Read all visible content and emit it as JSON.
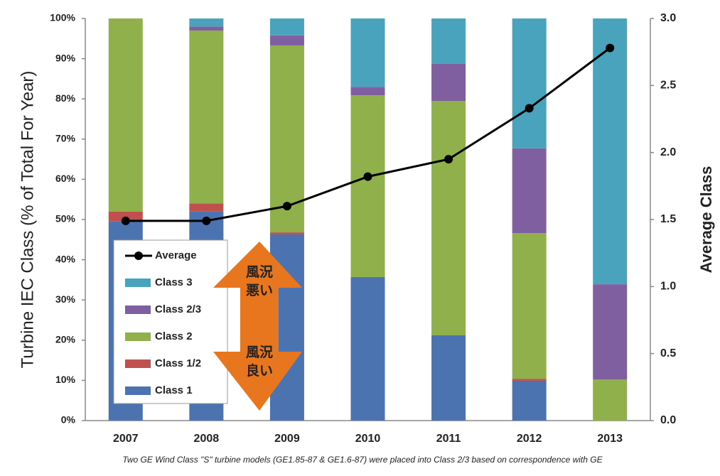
{
  "chart_data": {
    "type": "stacked-bar-line",
    "y_label": "Turbine IEC Class (% of Total For Year)",
    "y2_label": "Average Class",
    "footnote": "Two GE Wind Class \"S\" turbine models (GE1.85-87 & GE1.6-87) were placed into Class 2/3 based on correspondence with GE",
    "categories": [
      "2007",
      "2008",
      "2009",
      "2010",
      "2011",
      "2012",
      "2013"
    ],
    "series": [
      {
        "name": "Class 1",
        "color": "#4a73b0",
        "values": [
          49.5,
          52,
          46.3,
          35.7,
          21.2,
          9.9,
          0
        ]
      },
      {
        "name": "Class 1/2",
        "color": "#c0504d",
        "values": [
          2.5,
          2,
          0.5,
          0,
          0,
          0.5,
          0
        ]
      },
      {
        "name": "Class 2",
        "color": "#8fb04a",
        "values": [
          48,
          43,
          46.5,
          45.2,
          58.3,
          36.2,
          10.2
        ]
      },
      {
        "name": "Class 2/3",
        "color": "#7f5fa0",
        "values": [
          0,
          1,
          2.5,
          2.1,
          9.2,
          21.1,
          23.7
        ]
      },
      {
        "name": "Class 3",
        "color": "#4aa3bd",
        "values": [
          0,
          2,
          4.2,
          17,
          11.3,
          32.3,
          66.1
        ]
      },
      {
        "name": "Average",
        "color": "#000000",
        "axis": "y2",
        "values": [
          1.49,
          1.49,
          1.6,
          1.82,
          1.95,
          2.33,
          2.78
        ]
      }
    ],
    "ylim": [
      0,
      100
    ],
    "yticks": [
      {
        "value": 0,
        "label": "0%"
      },
      {
        "value": 10,
        "label": "10%"
      },
      {
        "value": 20,
        "label": "20%"
      },
      {
        "value": 30,
        "label": "30%"
      },
      {
        "value": 40,
        "label": "40%"
      },
      {
        "value": 50,
        "label": "50%"
      },
      {
        "value": 60,
        "label": "60%"
      },
      {
        "value": 70,
        "label": "70%"
      },
      {
        "value": 80,
        "label": "80%"
      },
      {
        "value": 90,
        "label": "90%"
      },
      {
        "value": 100,
        "label": "100%"
      }
    ],
    "y2lim": [
      0,
      3
    ],
    "y2ticks": [
      {
        "value": 0,
        "label": "0.0"
      },
      0.5,
      {
        "value": 1,
        "label": "1.0"
      },
      1.5,
      {
        "value": 2,
        "label": "2.0"
      },
      2.5,
      {
        "value": 3,
        "label": "3.0"
      }
    ],
    "grid": false,
    "legend": "lower left",
    "arrow_labels": {
      "top": [
        "風況",
        "悪い"
      ],
      "bottom": [
        "風況",
        "良い"
      ]
    }
  }
}
